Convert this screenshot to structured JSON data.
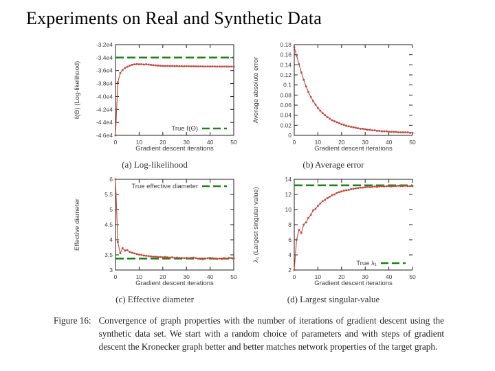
{
  "slide_title": "Experiments on Real and Synthetic Data",
  "colors": {
    "series": "#c2473a",
    "true_line": "#178517",
    "axis": "#1c1c1c",
    "plot_text": "#3d3d3d"
  },
  "figure_caption": {
    "label": "Figure 16:",
    "text": "Convergence of graph properties with the number of iterations of gradient descent using the synthetic data set. We start with a random choice of parameters and with steps of gradient descent the Kronecker graph better and better matches network properties of the target graph."
  },
  "chart_data": [
    {
      "id": "a",
      "type": "line",
      "subcaption": "(a) Log-likelihood",
      "xlabel": "Gradient descent iterations",
      "ylabel": "ℓ(Θ) (Log-likelihood)",
      "xlim": [
        0,
        50
      ],
      "ylim": [
        -46000,
        -32000
      ],
      "xticks": [
        0,
        10,
        20,
        30,
        40,
        50
      ],
      "yticks": {
        "values": [
          -32000,
          -34000,
          -36000,
          -38000,
          -40000,
          -42000,
          -44000,
          -46000
        ],
        "labels": [
          "-3.2e4",
          "-3.4e4",
          "-3.6e4",
          "-3.8e4",
          "-4.0e4",
          "-4.2e4",
          "-4.4e4",
          "-4.6e4"
        ]
      },
      "border": "box",
      "grid": false,
      "true_line": {
        "value": -34000,
        "legend": "True ℓ(Θ)",
        "legend_pos": "bottom-right"
      },
      "series": {
        "name": "gradient-descent-estimate",
        "x_start": 0,
        "x_step": 1,
        "y": [
          -46000,
          -37800,
          -36400,
          -35900,
          -35600,
          -35400,
          -35250,
          -35120,
          -35040,
          -35000,
          -35030,
          -35010,
          -35060,
          -35030,
          -35080,
          -35120,
          -35160,
          -35200,
          -35240,
          -35270,
          -35290,
          -35300,
          -35290,
          -35310,
          -35300,
          -35320,
          -35310,
          -35330,
          -35320,
          -35340,
          -35330,
          -35340,
          -35350,
          -35340,
          -35350,
          -35360,
          -35350,
          -35360,
          -35370,
          -35360,
          -35370,
          -35360,
          -35370,
          -35380,
          -35370,
          -35380,
          -35370,
          -35380,
          -35380,
          -35380,
          -35380
        ]
      }
    },
    {
      "id": "b",
      "type": "line",
      "subcaption": "(b) Average error",
      "xlabel": "Gradient descent iterations",
      "ylabel": "Average absolute error",
      "xlim": [
        0,
        50
      ],
      "ylim": [
        0,
        0.18
      ],
      "xticks": [
        0,
        10,
        20,
        30,
        40,
        50
      ],
      "yticks": {
        "values": [
          0.18,
          0.16,
          0.14,
          0.12,
          0.1,
          0.08,
          0.06,
          0.04,
          0.02,
          0
        ],
        "labels": [
          "0.18",
          "0.16",
          "0.14",
          "0.12",
          "0.1",
          "0.08",
          "0.06",
          "0.04",
          "0.02",
          "0"
        ]
      },
      "border": "no-right",
      "grid": false,
      "true_line": null,
      "series": {
        "name": "average-absolute-error",
        "x_start": 0,
        "x_step": 1,
        "y": [
          0.175,
          0.158,
          0.141,
          0.125,
          0.11,
          0.097,
          0.086,
          0.076,
          0.068,
          0.061,
          0.054,
          0.049,
          0.044,
          0.04,
          0.036,
          0.033,
          0.03,
          0.028,
          0.026,
          0.024,
          0.022,
          0.021,
          0.019,
          0.018,
          0.017,
          0.016,
          0.015,
          0.014,
          0.013,
          0.013,
          0.012,
          0.011,
          0.011,
          0.01,
          0.01,
          0.009,
          0.009,
          0.008,
          0.008,
          0.008,
          0.007,
          0.007,
          0.007,
          0.007,
          0.006,
          0.006,
          0.006,
          0.006,
          0.006,
          0.005,
          0.005
        ]
      }
    },
    {
      "id": "c",
      "type": "line",
      "subcaption": "(c) Effective diameter",
      "xlabel": "Gradient descent iterations",
      "ylabel": "Effective diameter",
      "xlim": [
        0,
        50
      ],
      "ylim": [
        3,
        6
      ],
      "xticks": [
        0,
        10,
        20,
        30,
        40,
        50
      ],
      "yticks": {
        "values": [
          6,
          5.5,
          5,
          4.5,
          4,
          3.5,
          3
        ],
        "labels": [
          "6",
          "5.5",
          "5",
          "4.5",
          "4",
          "3.5",
          "3"
        ]
      },
      "border": "box",
      "grid": false,
      "true_line": {
        "value": 3.38,
        "legend": "True effective diameter",
        "legend_pos": "top-right"
      },
      "series": {
        "name": "effective-diameter-estimate",
        "x_start": 0,
        "x_step": 1,
        "y": [
          6.0,
          3.92,
          3.55,
          3.72,
          3.64,
          3.66,
          3.6,
          3.57,
          3.55,
          3.53,
          3.51,
          3.5,
          3.48,
          3.47,
          3.46,
          3.45,
          3.44,
          3.44,
          3.43,
          3.43,
          3.42,
          3.43,
          3.42,
          3.41,
          3.42,
          3.4,
          3.41,
          3.4,
          3.4,
          3.39,
          3.4,
          3.39,
          3.4,
          3.41,
          3.39,
          3.38,
          3.37,
          3.36,
          3.38,
          3.39,
          3.4,
          3.39,
          3.38,
          3.37,
          3.38,
          3.37,
          3.39,
          3.38,
          3.4,
          3.39,
          3.39
        ]
      }
    },
    {
      "id": "d",
      "type": "line",
      "subcaption": "(d) Largest singular-value",
      "xlabel": "Gradient descent iterations",
      "ylabel": "λ₁ (Largest singular value)",
      "xlim": [
        0,
        50
      ],
      "ylim": [
        2,
        14
      ],
      "xticks": [
        0,
        10,
        20,
        30,
        40,
        50
      ],
      "yticks": {
        "values": [
          14,
          12,
          10,
          8,
          6,
          4,
          2
        ],
        "labels": [
          "14",
          "12",
          "10",
          "8",
          "6",
          "4",
          "2"
        ]
      },
      "border": "no-right",
      "grid": false,
      "true_line": {
        "value": 13.2,
        "legend": "True λ₁",
        "legend_pos": "bottom-right"
      },
      "series": {
        "name": "largest-singular-value-estimate",
        "x_start": 0,
        "x_step": 1,
        "y": [
          2.0,
          6.0,
          7.3,
          6.9,
          8.0,
          8.3,
          8.9,
          9.3,
          9.9,
          10.1,
          10.5,
          10.8,
          11.1,
          11.3,
          11.5,
          11.7,
          11.9,
          12.0,
          12.2,
          12.3,
          12.4,
          12.5,
          12.55,
          12.6,
          12.7,
          12.75,
          12.8,
          12.85,
          12.9,
          12.9,
          12.95,
          13.0,
          12.95,
          13.0,
          13.05,
          13.0,
          13.05,
          13.1,
          13.05,
          13.1,
          13.1,
          13.05,
          13.1,
          13.1,
          13.15,
          13.1,
          13.1,
          13.15,
          13.1,
          13.1,
          13.1
        ]
      }
    }
  ]
}
